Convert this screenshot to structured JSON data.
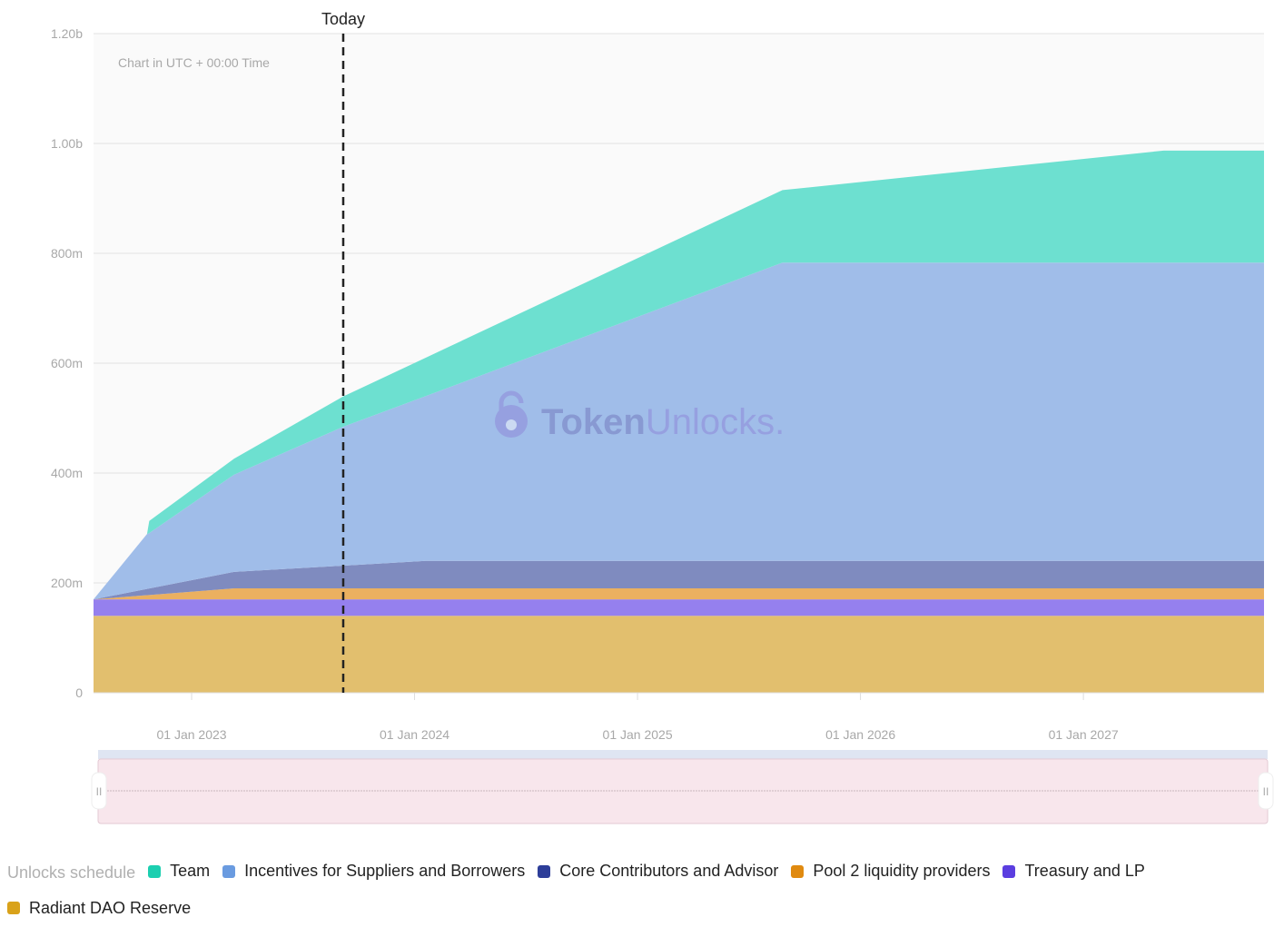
{
  "chart_data": {
    "type": "area",
    "stacked": true,
    "title": "",
    "note": "Chart in UTC + 00:00 Time",
    "today_label": "Today",
    "today_x": 2023.68,
    "watermark": "TokenUnlocks.",
    "xlabel": "",
    "ylabel": "",
    "xlim": [
      2022.56,
      2027.81
    ],
    "ylim": [
      0,
      1200
    ],
    "y_ticks": [
      {
        "v": 0,
        "label": "0"
      },
      {
        "v": 200,
        "label": "200m"
      },
      {
        "v": 400,
        "label": "400m"
      },
      {
        "v": 600,
        "label": "600m"
      },
      {
        "v": 800,
        "label": "800m"
      },
      {
        "v": 1000,
        "label": "1.00b"
      },
      {
        "v": 1200,
        "label": "1.20b"
      }
    ],
    "x_ticks": [
      {
        "v": 2023,
        "label": "01 Jan 2023"
      },
      {
        "v": 2024,
        "label": "01 Jan 2024"
      },
      {
        "v": 2025,
        "label": "01 Jan 2025"
      },
      {
        "v": 2026,
        "label": "01 Jan 2026"
      },
      {
        "v": 2027,
        "label": "01 Jan 2027"
      }
    ],
    "grid": true,
    "x": [
      2022.56,
      2022.8,
      2022.81,
      2023.19,
      2023.68,
      2024.05,
      2025.65,
      2027.36,
      2027.81
    ],
    "series": [
      {
        "name": "Radiant DAO Reserve",
        "color": "#d9a21a",
        "fill": "#e2bf6e",
        "values": [
          140,
          140,
          140,
          140,
          140,
          140,
          140,
          140,
          140
        ]
      },
      {
        "name": "Treasury and LP",
        "color": "#5b3ee0",
        "fill": "#9580ee",
        "values": [
          30,
          30,
          30,
          30,
          30,
          30,
          30,
          30,
          30
        ]
      },
      {
        "name": "Pool 2 liquidity providers",
        "color": "#e08a10",
        "fill": "#ebb060",
        "values": [
          0,
          7.6,
          7.9,
          20,
          20,
          20,
          20,
          20,
          20
        ]
      },
      {
        "name": "Core Contributors and Advisor",
        "color": "#2d3e99",
        "fill": "#7f8bbf",
        "values": [
          0,
          11.4,
          11.9,
          30,
          41.4,
          50,
          50,
          50,
          50
        ]
      },
      {
        "name": "Incentives for Suppliers and Borrowers",
        "color": "#6a9be0",
        "fill": "#a0bde9",
        "values": [
          0,
          100,
          101,
          177,
          253,
          300,
          543,
          543,
          543
        ]
      },
      {
        "name": "Team",
        "color": "#1ccfb0",
        "fill": "#6de0d0",
        "values": [
          0,
          0,
          22,
          29,
          55,
          70,
          132,
          204,
          204
        ]
      }
    ],
    "legend_title": "Unlocks schedule",
    "legend_order": [
      5,
      4,
      3,
      2,
      1,
      0
    ],
    "legend_position": "bottom"
  }
}
